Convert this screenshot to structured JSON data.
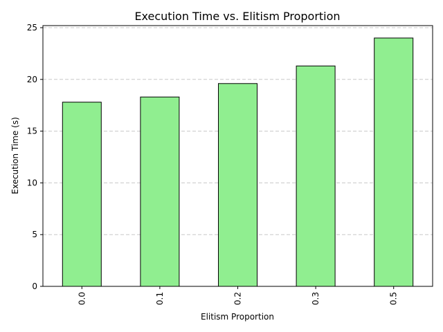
{
  "chart_data": {
    "type": "bar",
    "title": "Execution Time vs. Elitism Proportion",
    "xlabel": "Elitism Proportion",
    "ylabel": "Execution Time (s)",
    "categories": [
      "0.0",
      "0.1",
      "0.2",
      "0.3",
      "0.5"
    ],
    "values": [
      17.8,
      18.3,
      19.6,
      21.3,
      24.0
    ],
    "ylim": [
      0,
      25.2
    ],
    "yticks": [
      0,
      5,
      10,
      15,
      20,
      25
    ],
    "grid": "y-dashed",
    "legend": "none",
    "colors": {
      "bar_fill": "#90ee90",
      "bar_edge": "#000000",
      "grid": "#c8c8c8"
    }
  }
}
